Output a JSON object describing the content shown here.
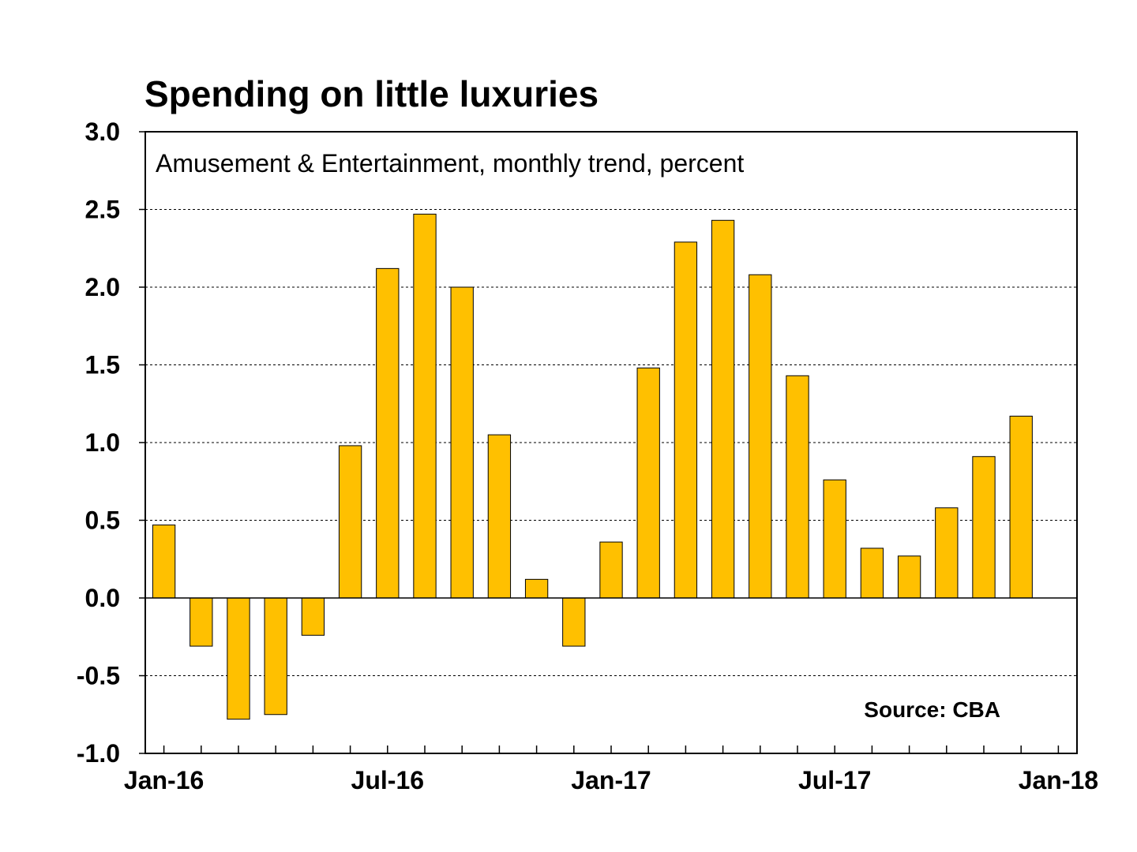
{
  "chart_data": {
    "type": "bar",
    "title": "Spending on little luxuries",
    "subtitle": "Amusement & Entertainment, monthly trend, percent",
    "source": "Source: CBA",
    "xlabel": "",
    "ylabel": "",
    "ylim": [
      -1.0,
      3.0
    ],
    "yticks": [
      "3.0",
      "2.5",
      "2.0",
      "1.5",
      "1.0",
      "0.5",
      "0.0",
      "-0.5",
      "-1.0"
    ],
    "ytick_values": [
      3.0,
      2.5,
      2.0,
      1.5,
      1.0,
      0.5,
      0.0,
      -0.5,
      -1.0
    ],
    "xtick_labels": [
      "Jan-16",
      "Jul-16",
      "Jan-17",
      "Jul-17",
      "Jan-18"
    ],
    "xtick_label_month_index": [
      0,
      6,
      12,
      18,
      24
    ],
    "grid": true,
    "bar_color": "#FFC000",
    "categories": [
      "Jan-16",
      "Feb-16",
      "Mar-16",
      "Apr-16",
      "May-16",
      "Jun-16",
      "Jul-16",
      "Aug-16",
      "Sep-16",
      "Oct-16",
      "Nov-16",
      "Dec-16",
      "Jan-17",
      "Feb-17",
      "Mar-17",
      "Apr-17",
      "May-17",
      "Jun-17",
      "Jul-17",
      "Aug-17",
      "Sep-17",
      "Oct-17",
      "Nov-17",
      "Dec-17"
    ],
    "values": [
      0.47,
      -0.31,
      -0.78,
      -0.75,
      -0.24,
      0.98,
      2.12,
      2.47,
      2.0,
      1.05,
      0.12,
      -0.31,
      0.36,
      1.48,
      2.29,
      2.43,
      2.08,
      1.43,
      0.76,
      0.32,
      0.27,
      0.58,
      0.91,
      1.17
    ]
  }
}
